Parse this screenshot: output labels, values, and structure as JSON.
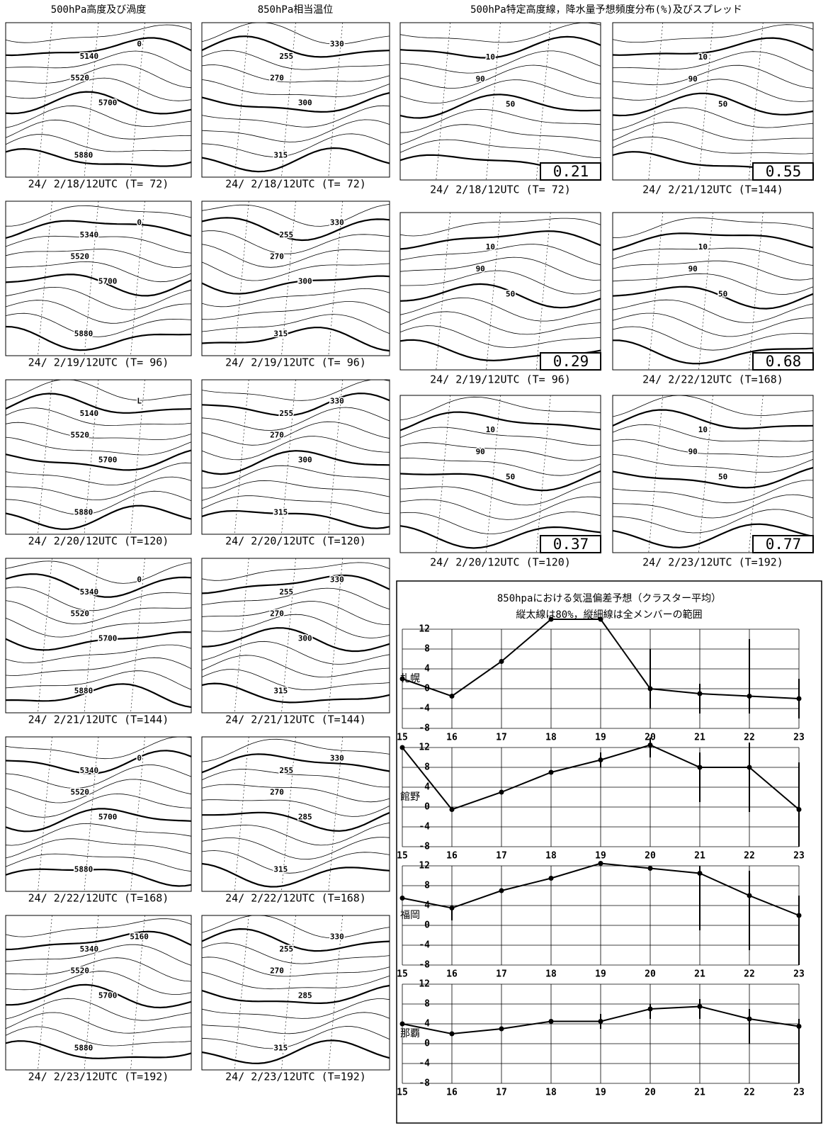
{
  "headers": [
    "500hPa高度及び渦度",
    "850hPa相当温位",
    "500hPa特定高度線，降水量予想頻度分布(%)及びスプレッド"
  ],
  "height_maps": [
    {
      "caption": "24/ 2/18/12UTC (T= 72)",
      "labels": [
        "5140",
        "5520",
        "5700",
        "5880",
        "0"
      ]
    },
    {
      "caption": "24/ 2/19/12UTC (T= 96)",
      "labels": [
        "5340",
        "5520",
        "5700",
        "5880",
        "0"
      ]
    },
    {
      "caption": "24/ 2/20/12UTC (T=120)",
      "labels": [
        "5140",
        "5520",
        "5700",
        "5880",
        "L"
      ]
    },
    {
      "caption": "24/ 2/21/12UTC (T=144)",
      "labels": [
        "5340",
        "5520",
        "5700",
        "5880",
        "0"
      ]
    },
    {
      "caption": "24/ 2/22/12UTC (T=168)",
      "labels": [
        "5340",
        "5520",
        "5700",
        "5880",
        "0"
      ]
    },
    {
      "caption": "24/ 2/23/12UTC (T=192)",
      "labels": [
        "5340",
        "5520",
        "5700",
        "5880",
        "5160"
      ]
    }
  ],
  "theta_maps": [
    {
      "caption": "24/ 2/18/12UTC (T= 72)",
      "labels": [
        "255",
        "270",
        "300",
        "315",
        "330"
      ]
    },
    {
      "caption": "24/ 2/19/12UTC (T= 96)",
      "labels": [
        "255",
        "270",
        "300",
        "315",
        "330"
      ]
    },
    {
      "caption": "24/ 2/20/12UTC (T=120)",
      "labels": [
        "255",
        "270",
        "300",
        "315",
        "330"
      ]
    },
    {
      "caption": "24/ 2/21/12UTC (T=144)",
      "labels": [
        "255",
        "270",
        "300",
        "315",
        "330"
      ]
    },
    {
      "caption": "24/ 2/22/12UTC (T=168)",
      "labels": [
        "255",
        "270",
        "285",
        "315",
        "330"
      ]
    },
    {
      "caption": "24/ 2/23/12UTC (T=192)",
      "labels": [
        "255",
        "270",
        "285",
        "315",
        "330"
      ]
    }
  ],
  "spread_maps": [
    {
      "caption": "24/ 2/18/12UTC (T= 72)",
      "spread": 0.21,
      "labels": [
        "10",
        "90",
        "50"
      ]
    },
    {
      "caption": "24/ 2/19/12UTC (T= 96)",
      "spread": 0.29,
      "labels": [
        "10",
        "90",
        "50"
      ]
    },
    {
      "caption": "24/ 2/20/12UTC (T=120)",
      "spread": 0.37,
      "labels": [
        "10",
        "90",
        "50"
      ]
    },
    {
      "caption": "24/ 2/21/12UTC (T=144)",
      "spread": 0.55,
      "labels": [
        "10",
        "90",
        "50"
      ]
    },
    {
      "caption": "24/ 2/22/12UTC (T=168)",
      "spread": 0.68,
      "labels": [
        "10",
        "90",
        "50"
      ]
    },
    {
      "caption": "24/ 2/23/12UTC (T=192)",
      "spread": 0.77,
      "labels": [
        "10",
        "90",
        "50"
      ]
    }
  ],
  "chart_data": {
    "type": "line",
    "title": "850hpaにおける気温偏差予想（クラスター平均）",
    "subtitle": "縦太線は80%，縦細線は全メンバーの範囲",
    "x": [
      15,
      16,
      17,
      18,
      19,
      20,
      21,
      22,
      23
    ],
    "ylim": [
      -8,
      12
    ],
    "yticks": [
      -8,
      -4,
      0,
      4,
      8,
      12
    ],
    "grid": true,
    "series": [
      {
        "name": "札幌",
        "color": "#000000",
        "values": [
          2,
          -1.5,
          5.5,
          14,
          14,
          0,
          -1,
          -1.5,
          -2
        ],
        "low": [
          null,
          null,
          null,
          null,
          null,
          -4,
          -5,
          -5,
          -6
        ],
        "high": [
          null,
          null,
          null,
          null,
          null,
          8,
          1,
          10,
          2
        ]
      },
      {
        "name": "館野",
        "color": "#000000",
        "values": [
          12,
          -0.5,
          3,
          7,
          9.5,
          12.5,
          8,
          8,
          -0.5
        ],
        "low": [
          null,
          null,
          null,
          null,
          8,
          10,
          1,
          -1,
          -8
        ],
        "high": [
          null,
          null,
          null,
          null,
          11,
          14,
          11,
          13,
          9
        ]
      },
      {
        "name": "福岡",
        "color": "#000000",
        "values": [
          5.5,
          3.5,
          7,
          9.5,
          12.5,
          11.5,
          10.5,
          6,
          2
        ],
        "low": [
          null,
          1,
          null,
          null,
          null,
          null,
          -1,
          -5,
          -8
        ],
        "high": [
          null,
          4,
          null,
          null,
          null,
          null,
          12,
          11,
          6
        ]
      },
      {
        "name": "那覇",
        "color": "#000000",
        "values": [
          4,
          2,
          3,
          4.5,
          4.5,
          7,
          7.5,
          5,
          3.5
        ],
        "low": [
          null,
          null,
          null,
          null,
          3,
          5,
          5,
          0,
          -8
        ],
        "high": [
          null,
          null,
          null,
          null,
          6,
          8,
          9,
          7,
          5
        ]
      }
    ]
  }
}
